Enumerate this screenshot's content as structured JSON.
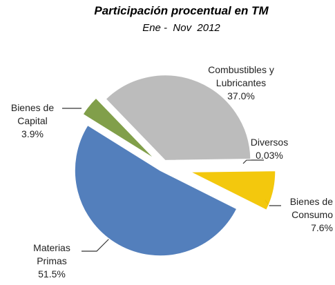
{
  "chart_data": {
    "type": "pie",
    "title": "Participación procentual en TM",
    "subtitle": "Ene -  Nov  2012",
    "categories": [
      "Combustibles y Lubricantes",
      "Diversos",
      "Bienes de Consumo",
      "Materias Primas",
      "Bienes de Capital"
    ],
    "values": [
      37.0,
      0.03,
      7.6,
      51.5,
      3.9
    ],
    "value_labels": [
      "37.0%",
      "0.03%",
      "7.6%",
      "51.5%",
      "3.9%"
    ],
    "colors": [
      "#b8b8b8",
      "#c0c0c0",
      "#f2c500",
      "#4a78b8",
      "#7a9a40"
    ]
  }
}
